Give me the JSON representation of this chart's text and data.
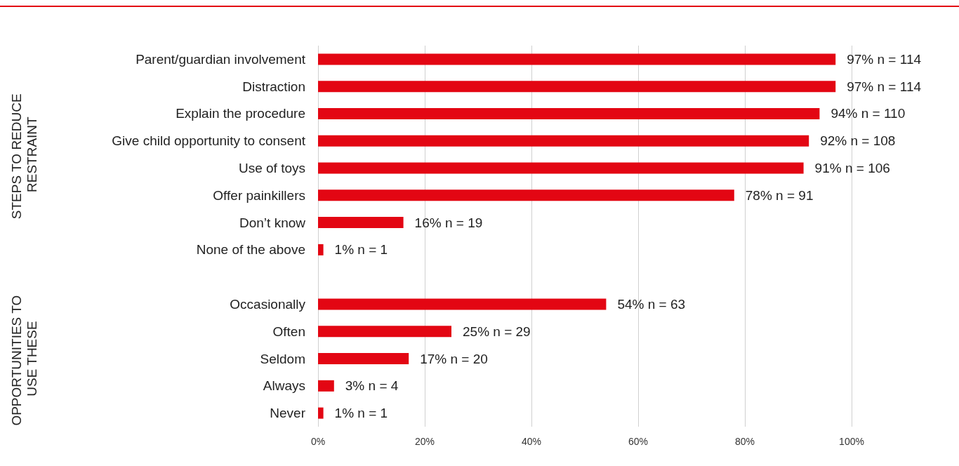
{
  "chart_data": {
    "type": "bar",
    "orientation": "horizontal",
    "categories": [
      "Parent/guardian involvement",
      "Distraction",
      "Explain the procedure",
      "Give child opportunity to consent",
      "Use of toys",
      "Offer painkillers",
      "Don’t know",
      "None of the above",
      null,
      "Occasionally",
      "Often",
      "Seldom",
      "Always",
      "Never"
    ],
    "values": [
      97,
      97,
      94,
      92,
      91,
      78,
      16,
      1,
      null,
      54,
      25,
      17,
      3,
      1
    ],
    "value_labels": [
      "97% n = 114",
      "97% n = 114",
      "94% n = 110",
      "92% n = 108",
      "91% n = 106",
      "78% n = 91",
      "16% n = 19",
      "1% n = 1",
      null,
      "54% n = 63",
      "25% n = 29",
      "17% n = 20",
      "3% n = 4",
      "1% n = 1"
    ],
    "color": "#e30613",
    "xlim": [
      0,
      100
    ],
    "xticks": [
      {
        "value": 0,
        "label": "0%"
      },
      {
        "value": 20,
        "label": "20%"
      },
      {
        "value": 40,
        "label": "40%"
      },
      {
        "value": 60,
        "label": "60%"
      },
      {
        "value": 80,
        "label": "80%"
      },
      {
        "value": 100,
        "label": "100%"
      }
    ],
    "grid": "x",
    "annotations": [
      "STEPS TO REDUCE RESTRAINT",
      "OPPORTUNITIES TO USE THESE"
    ]
  }
}
